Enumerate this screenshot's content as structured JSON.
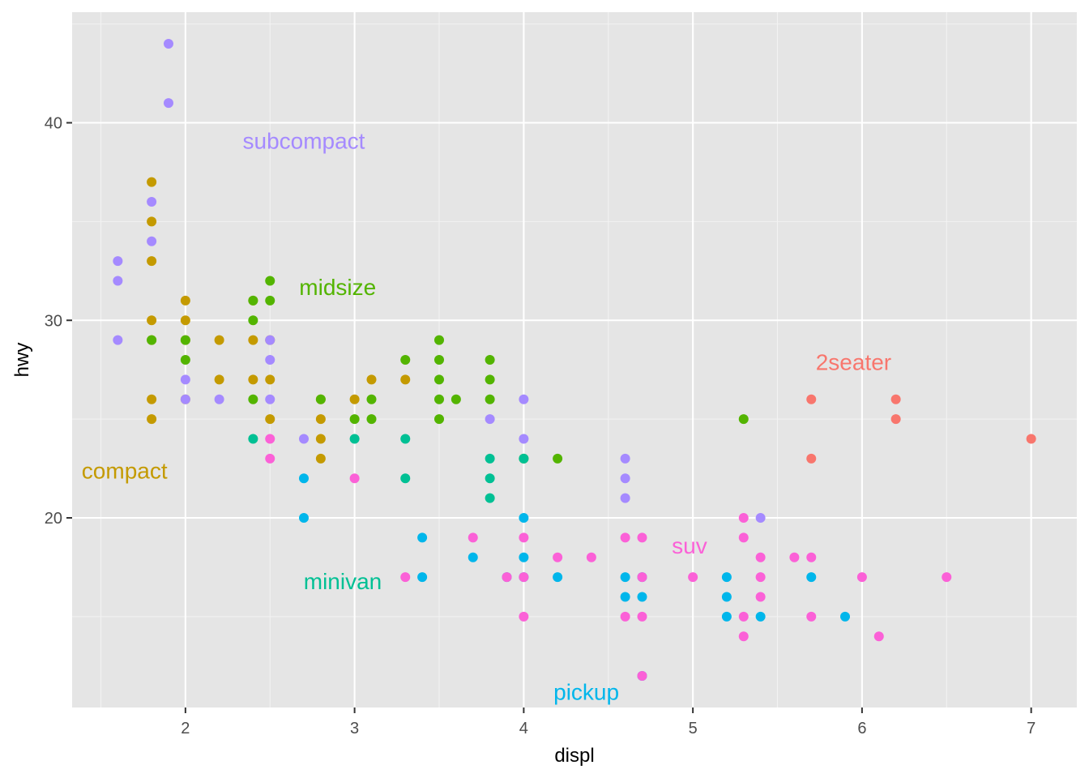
{
  "chart_data": {
    "type": "scatter",
    "title": "",
    "xlabel": "displ",
    "ylabel": "hwy",
    "xlim": [
      1.33,
      7.27
    ],
    "ylim": [
      10.4,
      45.6
    ],
    "x_ticks": [
      2,
      3,
      4,
      5,
      6,
      7
    ],
    "y_ticks": [
      20,
      30,
      40
    ],
    "grid": true,
    "legend": "none",
    "colors": {
      "2seater": "#F8766D",
      "compact": "#C49A00",
      "midsize": "#53B400",
      "minivan": "#00C094",
      "pickup": "#00B6EB",
      "subcompact": "#A58AFF",
      "suv": "#FB61D7"
    },
    "labels": [
      {
        "text": "2seater",
        "series": "2seater",
        "x": 5.95,
        "y": 27.9
      },
      {
        "text": "compact",
        "series": "compact",
        "x": 1.64,
        "y": 22.4
      },
      {
        "text": "midsize",
        "series": "midsize",
        "x": 2.9,
        "y": 31.7
      },
      {
        "text": "minivan",
        "series": "minivan",
        "x": 2.93,
        "y": 16.8
      },
      {
        "text": "pickup",
        "series": "pickup",
        "x": 4.37,
        "y": 11.2
      },
      {
        "text": "subcompact",
        "series": "subcompact",
        "x": 2.7,
        "y": 39.1
      },
      {
        "text": "suv",
        "series": "suv",
        "x": 4.98,
        "y": 18.6
      }
    ],
    "series": [
      {
        "name": "2seater",
        "points": [
          [
            5.7,
            26
          ],
          [
            5.7,
            23
          ],
          [
            6.2,
            26
          ],
          [
            6.2,
            25
          ],
          [
            7.0,
            24
          ]
        ]
      },
      {
        "name": "compact",
        "points": [
          [
            1.8,
            37
          ],
          [
            1.8,
            35
          ],
          [
            1.8,
            33
          ],
          [
            1.8,
            30
          ],
          [
            1.8,
            29
          ],
          [
            1.8,
            26
          ],
          [
            1.8,
            25
          ],
          [
            2.0,
            31
          ],
          [
            2.0,
            30
          ],
          [
            2.0,
            29
          ],
          [
            2.0,
            26
          ],
          [
            2.2,
            29
          ],
          [
            2.2,
            27
          ],
          [
            2.4,
            31
          ],
          [
            2.4,
            29
          ],
          [
            2.4,
            27
          ],
          [
            2.5,
            29
          ],
          [
            2.5,
            27
          ],
          [
            2.5,
            25
          ],
          [
            2.8,
            26
          ],
          [
            2.8,
            25
          ],
          [
            2.8,
            24
          ],
          [
            2.8,
            23
          ],
          [
            3.0,
            26
          ],
          [
            3.1,
            27
          ],
          [
            3.3,
            27
          ]
        ]
      },
      {
        "name": "midsize",
        "points": [
          [
            1.8,
            29
          ],
          [
            2.0,
            29
          ],
          [
            2.0,
            28
          ],
          [
            2.4,
            31
          ],
          [
            2.4,
            30
          ],
          [
            2.4,
            26
          ],
          [
            2.5,
            32
          ],
          [
            2.5,
            31
          ],
          [
            2.8,
            26
          ],
          [
            3.0,
            25
          ],
          [
            3.1,
            26
          ],
          [
            3.1,
            25
          ],
          [
            3.3,
            28
          ],
          [
            3.5,
            29
          ],
          [
            3.5,
            28
          ],
          [
            3.5,
            27
          ],
          [
            3.5,
            26
          ],
          [
            3.5,
            25
          ],
          [
            3.6,
            26
          ],
          [
            3.8,
            28
          ],
          [
            3.8,
            27
          ],
          [
            3.8,
            26
          ],
          [
            4.0,
            23
          ],
          [
            4.2,
            23
          ],
          [
            5.3,
            25
          ]
        ]
      },
      {
        "name": "minivan",
        "points": [
          [
            2.4,
            24
          ],
          [
            3.0,
            24
          ],
          [
            3.3,
            24
          ],
          [
            3.3,
            22
          ],
          [
            3.8,
            23
          ],
          [
            3.8,
            22
          ],
          [
            3.8,
            21
          ],
          [
            4.0,
            23
          ]
        ]
      },
      {
        "name": "pickup",
        "points": [
          [
            2.7,
            22
          ],
          [
            2.7,
            20
          ],
          [
            3.4,
            19
          ],
          [
            3.4,
            17
          ],
          [
            3.7,
            18
          ],
          [
            3.9,
            17
          ],
          [
            4.0,
            20
          ],
          [
            4.0,
            18
          ],
          [
            4.0,
            17
          ],
          [
            4.2,
            17
          ],
          [
            4.6,
            17
          ],
          [
            4.6,
            16
          ],
          [
            4.7,
            17
          ],
          [
            4.7,
            16
          ],
          [
            4.7,
            12
          ],
          [
            5.2,
            17
          ],
          [
            5.2,
            16
          ],
          [
            5.2,
            15
          ],
          [
            5.4,
            15
          ],
          [
            5.7,
            17
          ],
          [
            5.9,
            15
          ]
        ]
      },
      {
        "name": "subcompact",
        "points": [
          [
            1.6,
            33
          ],
          [
            1.6,
            32
          ],
          [
            1.6,
            29
          ],
          [
            1.8,
            36
          ],
          [
            1.8,
            34
          ],
          [
            1.9,
            44
          ],
          [
            1.9,
            41
          ],
          [
            2.0,
            27
          ],
          [
            2.0,
            26
          ],
          [
            2.2,
            26
          ],
          [
            2.5,
            29
          ],
          [
            2.5,
            28
          ],
          [
            2.5,
            26
          ],
          [
            2.7,
            24
          ],
          [
            3.8,
            25
          ],
          [
            4.0,
            26
          ],
          [
            4.0,
            24
          ],
          [
            4.6,
            23
          ],
          [
            4.6,
            22
          ],
          [
            4.6,
            21
          ],
          [
            5.4,
            20
          ]
        ]
      },
      {
        "name": "suv",
        "points": [
          [
            2.5,
            24
          ],
          [
            2.5,
            23
          ],
          [
            3.0,
            22
          ],
          [
            3.3,
            17
          ],
          [
            3.7,
            19
          ],
          [
            3.9,
            17
          ],
          [
            4.0,
            19
          ],
          [
            4.0,
            17
          ],
          [
            4.0,
            15
          ],
          [
            4.2,
            18
          ],
          [
            4.4,
            18
          ],
          [
            4.6,
            19
          ],
          [
            4.6,
            15
          ],
          [
            4.7,
            19
          ],
          [
            4.7,
            17
          ],
          [
            4.7,
            15
          ],
          [
            4.7,
            12
          ],
          [
            5.0,
            17
          ],
          [
            5.3,
            20
          ],
          [
            5.3,
            19
          ],
          [
            5.3,
            15
          ],
          [
            5.3,
            14
          ],
          [
            5.4,
            18
          ],
          [
            5.4,
            17
          ],
          [
            5.4,
            16
          ],
          [
            5.6,
            18
          ],
          [
            5.7,
            18
          ],
          [
            5.7,
            15
          ],
          [
            6.0,
            17
          ],
          [
            6.1,
            14
          ],
          [
            6.5,
            17
          ]
        ]
      }
    ]
  }
}
